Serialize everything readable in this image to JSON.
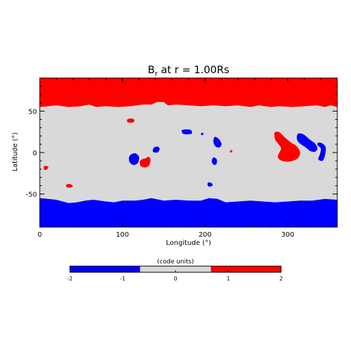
{
  "chart_data": {
    "type": "heatmap",
    "title": "B",
    "title_sub": "r",
    "title_rest": " at r = 1.00Rs",
    "xlabel": "Longitude (°)",
    "ylabel": "Latitude (°)",
    "xlim": [
      0,
      360
    ],
    "ylim": [
      -90,
      90
    ],
    "xticks": [
      0,
      100,
      200,
      300
    ],
    "yticks": [
      -50,
      0,
      50
    ],
    "x_minor_step": 20,
    "y_minor_step": 10,
    "colors": {
      "positive": "#ff0000",
      "neutral": "#d9d9d9",
      "negative": "#0000ff"
    },
    "north_boundary": [
      [
        0,
        55
      ],
      [
        10,
        56
      ],
      [
        20,
        57
      ],
      [
        35,
        55
      ],
      [
        50,
        56
      ],
      [
        60,
        58
      ],
      [
        68,
        55
      ],
      [
        80,
        56
      ],
      [
        95,
        55
      ],
      [
        110,
        56
      ],
      [
        125,
        58
      ],
      [
        135,
        58
      ],
      [
        142,
        61
      ],
      [
        150,
        61
      ],
      [
        155,
        57
      ],
      [
        165,
        58
      ],
      [
        180,
        57
      ],
      [
        195,
        56
      ],
      [
        210,
        57
      ],
      [
        225,
        56
      ],
      [
        240,
        57
      ],
      [
        255,
        55
      ],
      [
        265,
        57
      ],
      [
        280,
        55
      ],
      [
        290,
        56
      ],
      [
        305,
        55
      ],
      [
        320,
        56
      ],
      [
        335,
        57
      ],
      [
        345,
        55
      ],
      [
        352,
        57
      ],
      [
        360,
        55
      ]
    ],
    "south_boundary": [
      [
        0,
        -55
      ],
      [
        10,
        -56
      ],
      [
        20,
        -57
      ],
      [
        35,
        -61
      ],
      [
        45,
        -60
      ],
      [
        55,
        -58
      ],
      [
        65,
        -57
      ],
      [
        80,
        -59
      ],
      [
        90,
        -60
      ],
      [
        100,
        -58
      ],
      [
        115,
        -58
      ],
      [
        125,
        -57
      ],
      [
        135,
        -55
      ],
      [
        150,
        -58
      ],
      [
        165,
        -57
      ],
      [
        180,
        -58
      ],
      [
        195,
        -58
      ],
      [
        205,
        -55
      ],
      [
        215,
        -56
      ],
      [
        225,
        -60
      ],
      [
        240,
        -59
      ],
      [
        255,
        -58
      ],
      [
        270,
        -59
      ],
      [
        285,
        -60
      ],
      [
        300,
        -59
      ],
      [
        315,
        -58
      ],
      [
        330,
        -58
      ],
      [
        345,
        -56
      ],
      [
        360,
        -57
      ]
    ],
    "patches": [
      {
        "sign": "positive",
        "points": [
          [
            106,
            40
          ],
          [
            110,
            41
          ],
          [
            114,
            40
          ],
          [
            114,
            37
          ],
          [
            110,
            36
          ],
          [
            106,
            37
          ]
        ]
      },
      {
        "sign": "positive",
        "points": [
          [
            7,
            -16
          ],
          [
            10,
            -17
          ],
          [
            10,
            -19
          ],
          [
            7,
            -21
          ],
          [
            5,
            -20
          ],
          [
            5,
            -17
          ]
        ]
      },
      {
        "sign": "positive",
        "points": [
          [
            32,
            -39
          ],
          [
            36,
            -38
          ],
          [
            40,
            -40
          ],
          [
            38,
            -42
          ],
          [
            33,
            -42
          ]
        ]
      },
      {
        "sign": "positive",
        "points": [
          [
            128,
            -7
          ],
          [
            132,
            -5
          ],
          [
            134,
            -9
          ],
          [
            132,
            -16
          ],
          [
            127,
            -18
          ],
          [
            122,
            -16
          ],
          [
            121,
            -11
          ],
          [
            124,
            -8
          ]
        ]
      },
      {
        "sign": "positive",
        "points": [
          [
            230,
            2
          ],
          [
            232,
            3
          ],
          [
            233,
            1
          ],
          [
            231,
            0
          ]
        ]
      },
      {
        "sign": "positive",
        "points": [
          [
            284,
            24
          ],
          [
            289,
            25
          ],
          [
            294,
            21
          ],
          [
            298,
            17
          ],
          [
            304,
            12
          ],
          [
            309,
            9
          ],
          [
            313,
            5
          ],
          [
            315,
            -1
          ],
          [
            312,
            -7
          ],
          [
            306,
            -10
          ],
          [
            298,
            -11
          ],
          [
            291,
            -9
          ],
          [
            288,
            -5
          ],
          [
            290,
            0
          ],
          [
            292,
            5
          ],
          [
            289,
            10
          ],
          [
            285,
            15
          ],
          [
            284,
            20
          ]
        ]
      },
      {
        "sign": "negative",
        "points": [
          [
            111,
            -2
          ],
          [
            116,
            -1
          ],
          [
            120,
            -5
          ],
          [
            119,
            -12
          ],
          [
            114,
            -15
          ],
          [
            109,
            -12
          ],
          [
            108,
            -6
          ]
        ]
      },
      {
        "sign": "negative",
        "points": [
          [
            138,
            6
          ],
          [
            143,
            7
          ],
          [
            145,
            4
          ],
          [
            142,
            0
          ],
          [
            137,
            1
          ]
        ]
      },
      {
        "sign": "negative",
        "points": [
          [
            172,
            27
          ],
          [
            178,
            28
          ],
          [
            183,
            27
          ],
          [
            184,
            23
          ],
          [
            178,
            22
          ],
          [
            173,
            23
          ]
        ]
      },
      {
        "sign": "negative",
        "points": [
          [
            195,
            23
          ],
          [
            197,
            24
          ],
          [
            198,
            22
          ],
          [
            196,
            21
          ]
        ]
      },
      {
        "sign": "negative",
        "points": [
          [
            212,
            19
          ],
          [
            217,
            16
          ],
          [
            220,
            10
          ],
          [
            217,
            6
          ],
          [
            212,
            8
          ],
          [
            210,
            14
          ]
        ]
      },
      {
        "sign": "negative",
        "points": [
          [
            210,
            -6
          ],
          [
            214,
            -8
          ],
          [
            214,
            -13
          ],
          [
            211,
            -15
          ],
          [
            208,
            -11
          ]
        ]
      },
      {
        "sign": "negative",
        "points": [
          [
            204,
            -36
          ],
          [
            208,
            -37
          ],
          [
            209,
            -40
          ],
          [
            205,
            -41
          ],
          [
            203,
            -39
          ]
        ]
      },
      {
        "sign": "negative",
        "points": [
          [
            313,
            23
          ],
          [
            319,
            22
          ],
          [
            324,
            18
          ],
          [
            329,
            14
          ],
          [
            333,
            11
          ],
          [
            336,
            5
          ],
          [
            333,
            1
          ],
          [
            327,
            2
          ],
          [
            322,
            6
          ],
          [
            316,
            10
          ],
          [
            312,
            14
          ],
          [
            311,
            19
          ]
        ]
      },
      {
        "sign": "negative",
        "points": [
          [
            337,
            12
          ],
          [
            342,
            11
          ],
          [
            346,
            6
          ],
          [
            345,
            -4
          ],
          [
            342,
            -10
          ],
          [
            337,
            -8
          ],
          [
            339,
            -2
          ],
          [
            340,
            5
          ],
          [
            336,
            9
          ]
        ]
      }
    ]
  },
  "colorbar": {
    "label": "(code units)",
    "range": [
      -2,
      2
    ],
    "thresholds": [
      -0.67,
      0.67
    ],
    "ticks": [
      -2,
      -1,
      0,
      1,
      2
    ],
    "tick_labels": [
      "-2",
      "-1",
      "0",
      "1",
      "2"
    ]
  }
}
